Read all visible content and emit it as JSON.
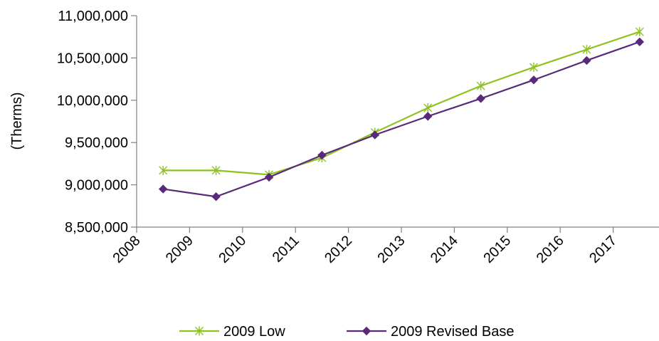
{
  "chart_data": {
    "type": "line",
    "title": "",
    "xlabel": "",
    "ylabel": "(Therms)",
    "categories": [
      "2008",
      "2009",
      "2010",
      "2011",
      "2012",
      "2013",
      "2014",
      "2015",
      "2016",
      "2017"
    ],
    "ylim": [
      8500000,
      11000000
    ],
    "yticks": [
      8500000,
      9000000,
      9500000,
      10000000,
      10500000,
      11000000
    ],
    "ytick_labels": [
      "8,500,000",
      "9,000,000",
      "9,500,000",
      "10,000,000",
      "10,500,000",
      "11,000,000"
    ],
    "grid": false,
    "legend_position": "bottom",
    "series": [
      {
        "name": "2009 Low",
        "color": "#8dc21f",
        "marker": "asterisk",
        "values": [
          9170000,
          9170000,
          9120000,
          9320000,
          9620000,
          9910000,
          10170000,
          10390000,
          10600000,
          10810000
        ]
      },
      {
        "name": "2009 Revised Base",
        "color": "#5a2a7a",
        "marker": "diamond",
        "values": [
          8950000,
          8860000,
          9090000,
          9350000,
          9590000,
          9810000,
          10020000,
          10240000,
          10470000,
          10690000
        ]
      }
    ]
  }
}
